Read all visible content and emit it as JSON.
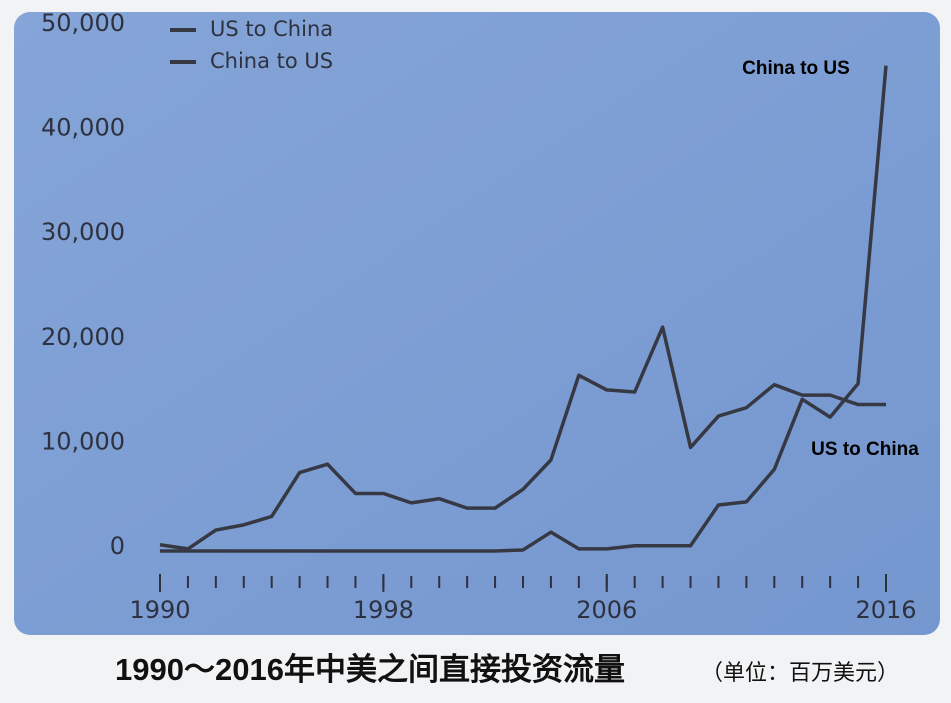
{
  "chart_data": {
    "type": "line",
    "title": "1990～2016年中美之间直接投资流量",
    "subtitle": "（单位：百万美元）",
    "x": [
      1990,
      1991,
      1992,
      1993,
      1994,
      1995,
      1996,
      1997,
      1998,
      1999,
      2000,
      2001,
      2002,
      2003,
      2004,
      2005,
      2006,
      2007,
      2008,
      2009,
      2010,
      2011,
      2012,
      2013,
      2014,
      2015,
      2016
    ],
    "series": [
      {
        "name": "US to China",
        "color": "#363944",
        "values": [
          600,
          200,
          2000,
          2500,
          3300,
          7500,
          8300,
          5500,
          5500,
          4600,
          5000,
          4100,
          4100,
          5900,
          8700,
          16800,
          15400,
          15200,
          21400,
          9900,
          12900,
          13700,
          15900,
          14900,
          14900,
          14000,
          14000
        ]
      },
      {
        "name": "China to US",
        "color": "#363944",
        "values": [
          0,
          0,
          0,
          0,
          0,
          0,
          0,
          0,
          0,
          0,
          0,
          0,
          0,
          100,
          1800,
          200,
          200,
          500,
          500,
          500,
          4400,
          4700,
          7800,
          14500,
          12800,
          16000,
          46400
        ]
      }
    ],
    "annotations": [
      "China to US",
      "US to China"
    ],
    "xlim": [
      1990,
      2016
    ],
    "xticks": [
      1990,
      1998,
      2006,
      2016
    ],
    "ylim": [
      0,
      50000
    ],
    "yticks": [
      {
        "value": 0,
        "label": "0"
      },
      {
        "value": 10000,
        "label": "10,000"
      },
      {
        "value": 20000,
        "label": "20,000"
      },
      {
        "value": 30000,
        "label": "30,000"
      },
      {
        "value": 40000,
        "label": "40,000"
      },
      {
        "value": 50000,
        "label": "50,000"
      }
    ],
    "legend": "top-left"
  }
}
